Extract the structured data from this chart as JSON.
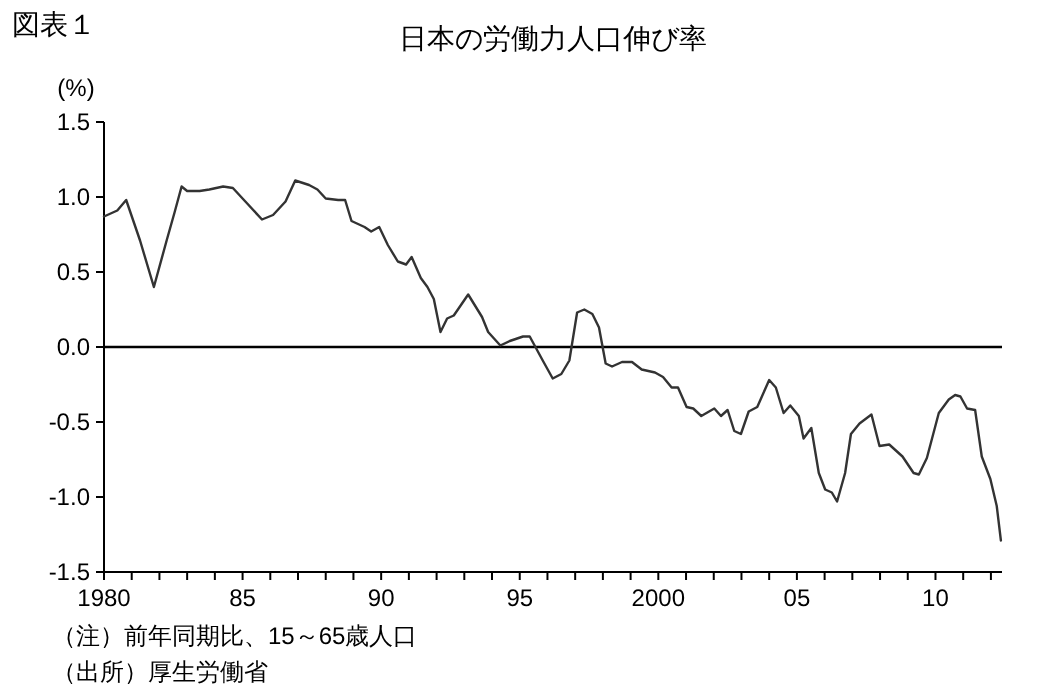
{
  "chart_data": {
    "type": "line",
    "title": "日本の労働力人口伸び率",
    "ylabel": "(%)",
    "annotations": [
      "図表１",
      "（注）前年同期比、15～65歳人口",
      "（出所）厚生労働省"
    ],
    "xlim": [
      1980,
      2012.4
    ],
    "ylim": [
      -1.5,
      1.5
    ],
    "xticks": [
      1980,
      {
        "value": 1981,
        "label": null
      },
      {
        "value": 1982,
        "label": null
      },
      {
        "value": 1983,
        "label": null
      },
      {
        "value": 1984,
        "label": null
      },
      {
        "value": 1985,
        "label": "85"
      },
      {
        "value": 1986,
        "label": null
      },
      {
        "value": 1987,
        "label": null
      },
      {
        "value": 1988,
        "label": null
      },
      {
        "value": 1989,
        "label": null
      },
      {
        "value": 1990,
        "label": "90"
      },
      {
        "value": 1991,
        "label": null
      },
      {
        "value": 1992,
        "label": null
      },
      {
        "value": 1993,
        "label": null
      },
      {
        "value": 1994,
        "label": null
      },
      {
        "value": 1995,
        "label": "95"
      },
      {
        "value": 1996,
        "label": null
      },
      {
        "value": 1997,
        "label": null
      },
      {
        "value": 1998,
        "label": null
      },
      {
        "value": 1999,
        "label": null
      },
      2000,
      {
        "value": 2001,
        "label": null
      },
      {
        "value": 2002,
        "label": null
      },
      {
        "value": 2003,
        "label": null
      },
      {
        "value": 2004,
        "label": null
      },
      {
        "value": 2005,
        "label": "05"
      },
      {
        "value": 2006,
        "label": null
      },
      {
        "value": 2007,
        "label": null
      },
      {
        "value": 2008,
        "label": null
      },
      {
        "value": 2009,
        "label": null
      },
      {
        "value": 2010,
        "label": "10"
      },
      {
        "value": 2011,
        "label": null
      },
      {
        "value": 2012,
        "label": null
      }
    ],
    "yticks": [
      {
        "value": 1.5,
        "label": "1.5"
      },
      {
        "value": 1.0,
        "label": "1.0"
      },
      {
        "value": 0.5,
        "label": "0.5"
      },
      {
        "value": 0,
        "label": "0.0"
      },
      {
        "value": -0.5,
        "label": "-0.5"
      },
      {
        "value": -1.0,
        "label": "-1.0"
      },
      {
        "value": -1.5,
        "label": "-1.5"
      }
    ],
    "ref_lines": [
      {
        "axis": "y",
        "value": 0,
        "color": "#000000"
      }
    ],
    "marker": "none",
    "line_style": "solid",
    "series": [
      {
        "color": "#333333",
        "x": [
          1980.0,
          1980.48,
          1980.8,
          1981.3,
          1981.8,
          1982.26,
          1982.55,
          1982.8,
          1983.0,
          1983.45,
          1983.8,
          1984.3,
          1984.65,
          1985.1,
          1985.7,
          1986.1,
          1986.55,
          1986.9,
          1987.4,
          1987.7,
          1988.0,
          1988.45,
          1988.7,
          1988.93,
          1989.4,
          1989.64,
          1989.93,
          1990.24,
          1990.6,
          1990.9,
          1991.1,
          1991.43,
          1991.67,
          1991.9,
          1992.14,
          1992.38,
          1992.62,
          1993.14,
          1993.64,
          1993.86,
          1994.3,
          1994.64,
          1995.12,
          1995.36,
          1995.83,
          1996.19,
          1996.5,
          1996.79,
          1997.07,
          1997.33,
          1997.62,
          1997.86,
          1998.1,
          1998.33,
          1998.69,
          1999.05,
          1999.4,
          1999.88,
          2000.17,
          2000.48,
          2000.71,
          2001.02,
          2001.26,
          2001.55,
          2002.02,
          2002.26,
          2002.5,
          2002.74,
          2002.98,
          2003.26,
          2003.57,
          2004.0,
          2004.24,
          2004.52,
          2004.76,
          2005.07,
          2005.24,
          2005.52,
          2005.79,
          2006.02,
          2006.26,
          2006.45,
          2006.74,
          2006.95,
          2007.26,
          2007.69,
          2007.98,
          2008.33,
          2008.81,
          2009.21,
          2009.4,
          2009.69,
          2010.12,
          2010.48,
          2010.71,
          2010.9,
          2011.14,
          2011.43,
          2011.67,
          2011.98,
          2012.21,
          2012.36
        ],
        "values": [
          0.87,
          0.91,
          0.98,
          0.71,
          0.4,
          0.71,
          0.9,
          1.07,
          1.04,
          1.04,
          1.05,
          1.07,
          1.06,
          0.97,
          0.85,
          0.88,
          0.97,
          1.11,
          1.08,
          1.05,
          0.99,
          0.98,
          0.98,
          0.84,
          0.8,
          0.77,
          0.8,
          0.68,
          0.57,
          0.55,
          0.6,
          0.46,
          0.4,
          0.32,
          0.1,
          0.19,
          0.21,
          0.35,
          0.2,
          0.1,
          0.01,
          0.04,
          0.07,
          0.07,
          -0.09,
          -0.21,
          -0.18,
          -0.09,
          0.23,
          0.25,
          0.22,
          0.13,
          -0.11,
          -0.13,
          -0.1,
          -0.1,
          -0.15,
          -0.17,
          -0.2,
          -0.27,
          -0.27,
          -0.4,
          -0.41,
          -0.46,
          -0.41,
          -0.46,
          -0.42,
          -0.56,
          -0.58,
          -0.43,
          -0.4,
          -0.22,
          -0.27,
          -0.44,
          -0.39,
          -0.46,
          -0.61,
          -0.54,
          -0.84,
          -0.95,
          -0.97,
          -1.03,
          -0.84,
          -0.58,
          -0.51,
          -0.45,
          -0.66,
          -0.65,
          -0.73,
          -0.84,
          -0.85,
          -0.74,
          -0.44,
          -0.35,
          -0.32,
          -0.33,
          -0.41,
          -0.42,
          -0.73,
          -0.88,
          -1.06,
          -1.29
        ]
      }
    ]
  }
}
